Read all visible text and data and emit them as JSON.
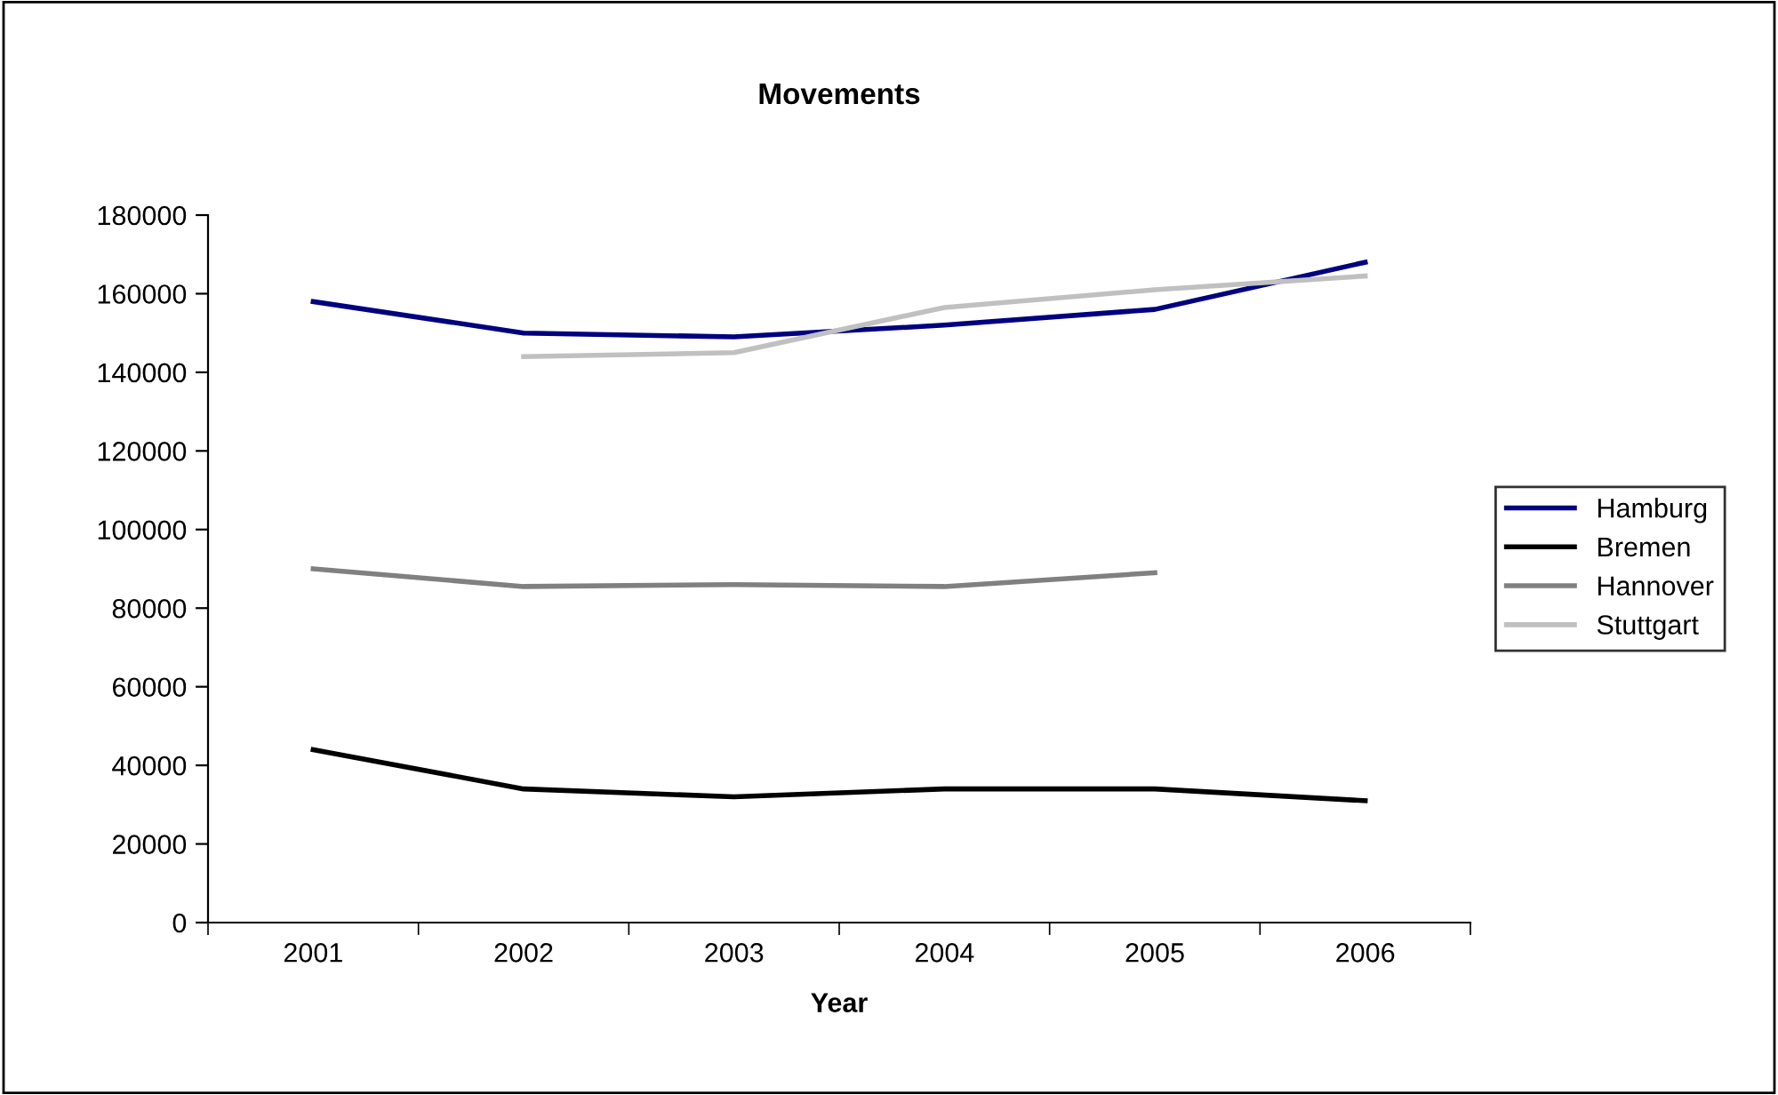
{
  "chart_data": {
    "type": "line",
    "title": "Movements",
    "xlabel": "Year",
    "categories": [
      "2001",
      "2002",
      "2003",
      "2004",
      "2005",
      "2006"
    ],
    "series": [
      {
        "name": "Hamburg",
        "color": "#000080",
        "values": [
          158000,
          150000,
          149000,
          152000,
          156000,
          168000
        ]
      },
      {
        "name": "Bremen",
        "color": "#000000",
        "values": [
          44000,
          34000,
          32000,
          34000,
          34000,
          31000
        ]
      },
      {
        "name": "Hannover",
        "color": "#808080",
        "values": [
          90000,
          85500,
          86000,
          85500,
          89000,
          null
        ]
      },
      {
        "name": "Stuttgart",
        "color": "#c0c0c0",
        "values": [
          null,
          144000,
          145000,
          156500,
          161000,
          164500
        ]
      }
    ],
    "ylim": [
      0,
      180000
    ],
    "yticks": [
      0,
      20000,
      40000,
      60000,
      80000,
      100000,
      120000,
      140000,
      160000,
      180000
    ],
    "grid": false,
    "legend": "right",
    "marker": "none",
    "line_style": "solid"
  }
}
